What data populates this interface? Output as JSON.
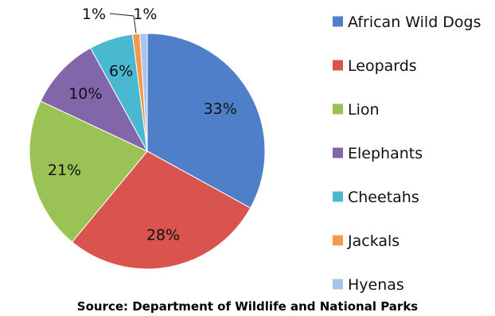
{
  "chart_data": {
    "type": "pie",
    "categories": [
      "African Wild Dogs",
      "Leopards",
      "Lion",
      "Elephants",
      "Cheetahs",
      "Jackals",
      "Hyenas"
    ],
    "values": [
      33,
      28,
      21,
      10,
      6,
      1,
      1
    ],
    "data_labels": [
      "33%",
      "28%",
      "21%",
      "10%",
      "6%",
      "1%",
      "1%"
    ],
    "colors": [
      "#4f7fc9",
      "#d9534f",
      "#9bc254",
      "#8167a9",
      "#4bb8d2",
      "#f39a4a",
      "#a9c4ec"
    ],
    "legend_position": "right",
    "source": "Source: Department of Wildlife and National Parks"
  }
}
